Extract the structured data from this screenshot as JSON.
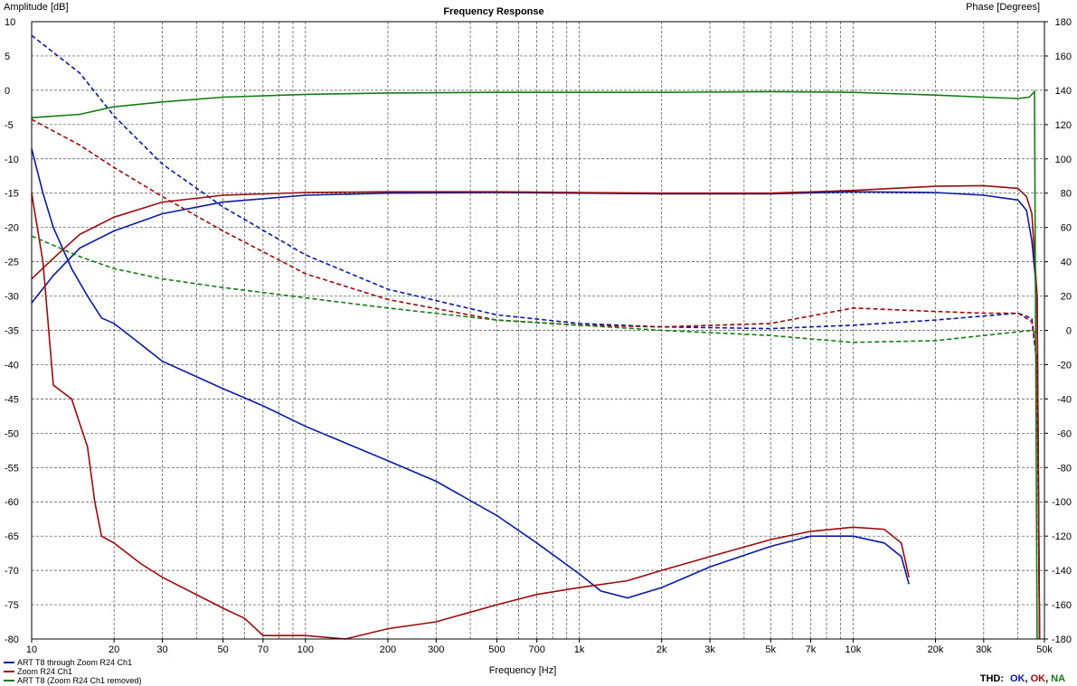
{
  "chart_data": {
    "type": "line",
    "title": "Frequency Response",
    "xlabel": "Frequency [Hz]",
    "ylabel_left": "Amplitude [dB]",
    "ylabel_right": "Phase [Degrees]",
    "x_scale": "log",
    "xlim": [
      10,
      50000
    ],
    "ylim_left": [
      -80,
      10
    ],
    "ylim_right": [
      -180,
      180
    ],
    "grid": true,
    "legend_position": "bottom-left",
    "x_ticks": [
      {
        "value": 10,
        "label": "10"
      },
      {
        "value": 20,
        "label": "20"
      },
      {
        "value": 30,
        "label": "30"
      },
      {
        "value": 50,
        "label": "50"
      },
      {
        "value": 70,
        "label": "70"
      },
      {
        "value": 100,
        "label": "100"
      },
      {
        "value": 200,
        "label": "200"
      },
      {
        "value": 300,
        "label": "300"
      },
      {
        "value": 500,
        "label": "500"
      },
      {
        "value": 700,
        "label": "700"
      },
      {
        "value": 1000,
        "label": "1k"
      },
      {
        "value": 2000,
        "label": "2k"
      },
      {
        "value": 3000,
        "label": "3k"
      },
      {
        "value": 5000,
        "label": "5k"
      },
      {
        "value": 7000,
        "label": "7k"
      },
      {
        "value": 10000,
        "label": "10k"
      },
      {
        "value": 20000,
        "label": "20k"
      },
      {
        "value": 30000,
        "label": "30k"
      },
      {
        "value": 50000,
        "label": "50k"
      }
    ],
    "y_ticks_left": [
      10,
      5,
      0,
      -5,
      -10,
      -15,
      -20,
      -25,
      -30,
      -35,
      -40,
      -45,
      -50,
      -55,
      -60,
      -65,
      -70,
      -75,
      -80
    ],
    "y_ticks_right": [
      180,
      160,
      140,
      120,
      100,
      80,
      60,
      40,
      20,
      0,
      -20,
      -40,
      -60,
      -80,
      -100,
      -120,
      -140,
      -160,
      -180
    ],
    "series": [
      {
        "name": "ART T8 through Zoom R24 Ch1",
        "color": "#0a1aa0",
        "amplitude": [
          [
            10,
            -31
          ],
          [
            12,
            -27
          ],
          [
            15,
            -23
          ],
          [
            20,
            -20.5
          ],
          [
            30,
            -18
          ],
          [
            50,
            -16.3
          ],
          [
            100,
            -15.3
          ],
          [
            200,
            -15
          ],
          [
            500,
            -14.9
          ],
          [
            1000,
            -15
          ],
          [
            2000,
            -15.1
          ],
          [
            5000,
            -15.1
          ],
          [
            10000,
            -14.8
          ],
          [
            20000,
            -14.9
          ],
          [
            30000,
            -15.3
          ],
          [
            40000,
            -16
          ],
          [
            43000,
            -17.5
          ],
          [
            45000,
            -22
          ],
          [
            47000,
            -30
          ],
          [
            48000,
            -80
          ]
        ],
        "thd": [
          [
            10,
            -8.5
          ],
          [
            11,
            -15
          ],
          [
            12,
            -20
          ],
          [
            14,
            -26
          ],
          [
            16,
            -30
          ],
          [
            18,
            -33.2
          ],
          [
            20,
            -34
          ],
          [
            25,
            -37
          ],
          [
            30,
            -39.5
          ],
          [
            50,
            -43.5
          ],
          [
            70,
            -46
          ],
          [
            100,
            -49
          ],
          [
            200,
            -54
          ],
          [
            300,
            -57
          ],
          [
            500,
            -62
          ],
          [
            700,
            -66
          ],
          [
            1000,
            -70.5
          ],
          [
            1200,
            -73
          ],
          [
            1500,
            -74
          ],
          [
            2000,
            -72.5
          ],
          [
            3000,
            -69.5
          ],
          [
            5000,
            -66.5
          ],
          [
            7000,
            -65
          ],
          [
            10000,
            -65
          ],
          [
            13000,
            -66
          ],
          [
            15000,
            -68
          ],
          [
            16000,
            -72
          ]
        ],
        "phase": [
          [
            10,
            172
          ],
          [
            15,
            150
          ],
          [
            20,
            125
          ],
          [
            30,
            97
          ],
          [
            50,
            72
          ],
          [
            100,
            44
          ],
          [
            200,
            24
          ],
          [
            500,
            9
          ],
          [
            1000,
            4
          ],
          [
            2000,
            2
          ],
          [
            5000,
            1
          ],
          [
            10000,
            3
          ],
          [
            20000,
            6
          ],
          [
            40000,
            10
          ],
          [
            45000,
            7
          ],
          [
            47000,
            -20
          ],
          [
            48000,
            -180
          ]
        ]
      },
      {
        "name": "Zoom R24 Ch1",
        "color": "#9b0b0b",
        "amplitude": [
          [
            10,
            -27.5
          ],
          [
            12,
            -24.5
          ],
          [
            15,
            -21
          ],
          [
            20,
            -18.5
          ],
          [
            30,
            -16.3
          ],
          [
            50,
            -15.3
          ],
          [
            100,
            -14.9
          ],
          [
            200,
            -14.8
          ],
          [
            500,
            -14.8
          ],
          [
            1000,
            -14.9
          ],
          [
            2000,
            -15
          ],
          [
            5000,
            -15
          ],
          [
            10000,
            -14.6
          ],
          [
            20000,
            -14
          ],
          [
            30000,
            -13.9
          ],
          [
            40000,
            -14.3
          ],
          [
            43000,
            -15.5
          ],
          [
            45000,
            -18
          ],
          [
            47000,
            -30
          ],
          [
            48000,
            -80
          ]
        ],
        "thd": [
          [
            10,
            -15
          ],
          [
            11,
            -25
          ],
          [
            12,
            -43
          ],
          [
            14,
            -45
          ],
          [
            16,
            -52
          ],
          [
            17,
            -60
          ],
          [
            18,
            -65
          ],
          [
            20,
            -66
          ],
          [
            25,
            -69
          ],
          [
            30,
            -71
          ],
          [
            50,
            -75.5
          ],
          [
            60,
            -77
          ],
          [
            70,
            -79.5
          ],
          [
            100,
            -79.5
          ],
          [
            140,
            -80
          ],
          [
            200,
            -78.5
          ],
          [
            300,
            -77.5
          ],
          [
            500,
            -75
          ],
          [
            700,
            -73.5
          ],
          [
            1000,
            -72.5
          ],
          [
            1500,
            -71.5
          ],
          [
            2000,
            -70
          ],
          [
            3000,
            -68
          ],
          [
            5000,
            -65.5
          ],
          [
            7000,
            -64.3
          ],
          [
            10000,
            -63.7
          ],
          [
            13000,
            -64
          ],
          [
            15000,
            -66
          ],
          [
            16000,
            -71
          ]
        ],
        "phase": [
          [
            10,
            123
          ],
          [
            15,
            108
          ],
          [
            20,
            95
          ],
          [
            30,
            78
          ],
          [
            50,
            58
          ],
          [
            100,
            33
          ],
          [
            200,
            18
          ],
          [
            500,
            6
          ],
          [
            1000,
            3
          ],
          [
            2000,
            2
          ],
          [
            5000,
            4
          ],
          [
            10000,
            13
          ],
          [
            20000,
            11
          ],
          [
            30000,
            10
          ],
          [
            40000,
            10
          ],
          [
            45000,
            5
          ],
          [
            47000,
            -20
          ],
          [
            48000,
            -180
          ]
        ]
      },
      {
        "name": "ART T8 (Zoom R24 Ch1 removed)",
        "color": "#137c13",
        "amplitude": [
          [
            10,
            -4
          ],
          [
            15,
            -3.5
          ],
          [
            20,
            -2.4
          ],
          [
            30,
            -1.7
          ],
          [
            50,
            -1
          ],
          [
            100,
            -0.6
          ],
          [
            200,
            -0.4
          ],
          [
            500,
            -0.3
          ],
          [
            1000,
            -0.3
          ],
          [
            2000,
            -0.3
          ],
          [
            5000,
            -0.2
          ],
          [
            10000,
            -0.3
          ],
          [
            20000,
            -0.7
          ],
          [
            30000,
            -1
          ],
          [
            40000,
            -1.2
          ],
          [
            44000,
            -1
          ],
          [
            46000,
            -0.2
          ],
          [
            47000,
            -80
          ]
        ],
        "thd": [],
        "phase": [
          [
            10,
            55
          ],
          [
            15,
            43
          ],
          [
            20,
            36
          ],
          [
            30,
            30
          ],
          [
            50,
            25
          ],
          [
            100,
            19
          ],
          [
            200,
            13
          ],
          [
            500,
            6
          ],
          [
            1000,
            3
          ],
          [
            2000,
            0
          ],
          [
            5000,
            -3
          ],
          [
            7000,
            -5
          ],
          [
            10000,
            -7
          ],
          [
            20000,
            -6
          ],
          [
            30000,
            -3
          ],
          [
            45000,
            0
          ],
          [
            47000,
            -2
          ]
        ]
      }
    ]
  },
  "thd_status": {
    "label": "THD:",
    "items": [
      {
        "text": "OK",
        "color": "#0a1aa0"
      },
      {
        "text": "OK",
        "color": "#9b0b0b"
      },
      {
        "text": "NA",
        "color": "#137c13"
      }
    ],
    "separator": ","
  }
}
